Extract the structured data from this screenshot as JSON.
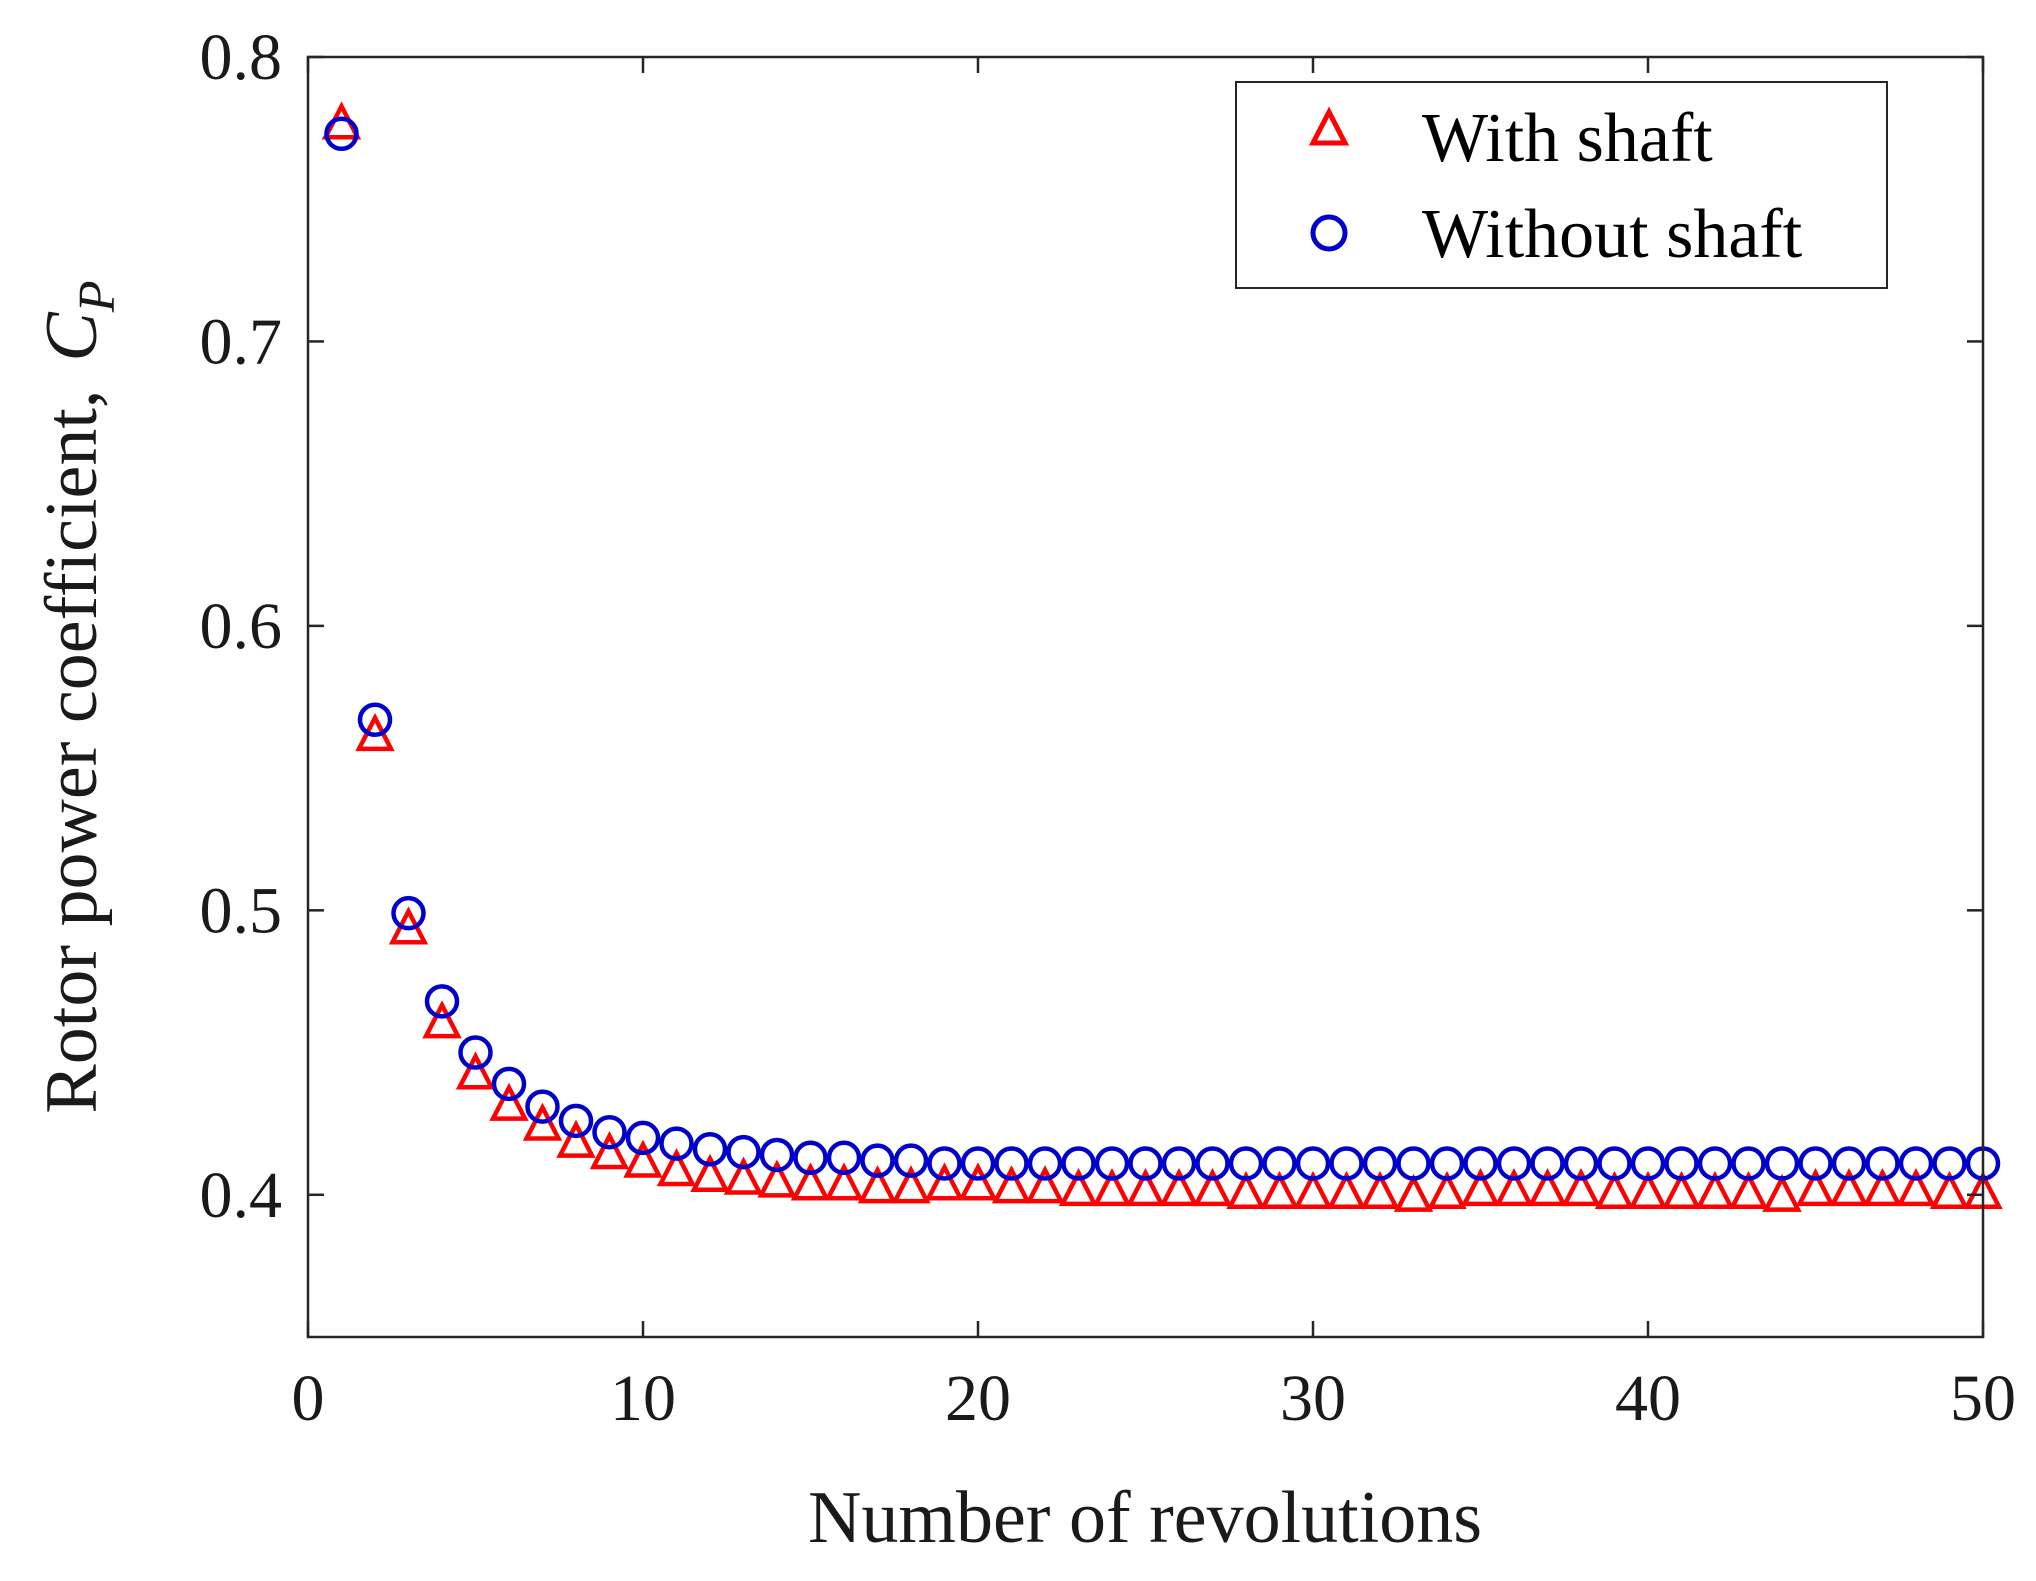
{
  "chart_data": {
    "type": "scatter",
    "title": "",
    "xlabel": "Number of revolutions",
    "ylabel_prefix": "Rotor power coefficient,",
    "ylabel_symbol": "C",
    "ylabel_subscript": "P",
    "xlim": [
      0,
      50
    ],
    "ylim": [
      0.35,
      0.8
    ],
    "xticks": [
      0,
      10,
      20,
      30,
      40,
      50
    ],
    "xtick_labels": [
      "0",
      "10",
      "20",
      "30",
      "40",
      "50"
    ],
    "yticks": [
      0.4,
      0.5,
      0.6,
      0.7,
      0.8
    ],
    "ytick_labels": [
      "0.4",
      "0.5",
      "0.6",
      "0.7",
      "0.8"
    ],
    "grid": false,
    "legend_position": "top-right",
    "series": [
      {
        "name": "With shaft",
        "marker": "triangle",
        "color": "#ff0000",
        "x": [
          1,
          2,
          3,
          4,
          5,
          6,
          7,
          8,
          9,
          10,
          11,
          12,
          13,
          14,
          15,
          16,
          17,
          18,
          19,
          20,
          21,
          22,
          23,
          24,
          25,
          26,
          27,
          28,
          29,
          30,
          31,
          32,
          33,
          34,
          35,
          36,
          37,
          38,
          39,
          40,
          41,
          42,
          43,
          44,
          45,
          46,
          47,
          48,
          49,
          50
        ],
        "values": [
          0.776,
          0.561,
          0.493,
          0.46,
          0.442,
          0.431,
          0.424,
          0.418,
          0.414,
          0.411,
          0.408,
          0.406,
          0.405,
          0.404,
          0.403,
          0.403,
          0.402,
          0.402,
          0.403,
          0.403,
          0.402,
          0.402,
          0.401,
          0.401,
          0.401,
          0.401,
          0.401,
          0.4,
          0.4,
          0.4,
          0.4,
          0.4,
          0.399,
          0.4,
          0.401,
          0.401,
          0.401,
          0.401,
          0.4,
          0.4,
          0.4,
          0.4,
          0.4,
          0.399,
          0.401,
          0.401,
          0.401,
          0.401,
          0.4,
          0.4
        ]
      },
      {
        "name": "Without shaft",
        "marker": "circle",
        "color": "#0000cc",
        "x": [
          1,
          2,
          3,
          4,
          5,
          6,
          7,
          8,
          9,
          10,
          11,
          12,
          13,
          14,
          15,
          16,
          17,
          18,
          19,
          20,
          21,
          22,
          23,
          24,
          25,
          26,
          27,
          28,
          29,
          30,
          31,
          32,
          33,
          34,
          35,
          36,
          37,
          38,
          39,
          40,
          41,
          42,
          43,
          44,
          45,
          46,
          47,
          48,
          49,
          50
        ],
        "values": [
          0.773,
          0.567,
          0.499,
          0.468,
          0.45,
          0.439,
          0.431,
          0.426,
          0.422,
          0.42,
          0.418,
          0.416,
          0.415,
          0.414,
          0.413,
          0.413,
          0.412,
          0.412,
          0.411,
          0.411,
          0.411,
          0.411,
          0.411,
          0.411,
          0.411,
          0.411,
          0.411,
          0.411,
          0.411,
          0.411,
          0.411,
          0.411,
          0.411,
          0.411,
          0.411,
          0.411,
          0.411,
          0.411,
          0.411,
          0.411,
          0.411,
          0.411,
          0.411,
          0.411,
          0.411,
          0.411,
          0.411,
          0.411,
          0.411,
          0.411
        ]
      }
    ]
  }
}
